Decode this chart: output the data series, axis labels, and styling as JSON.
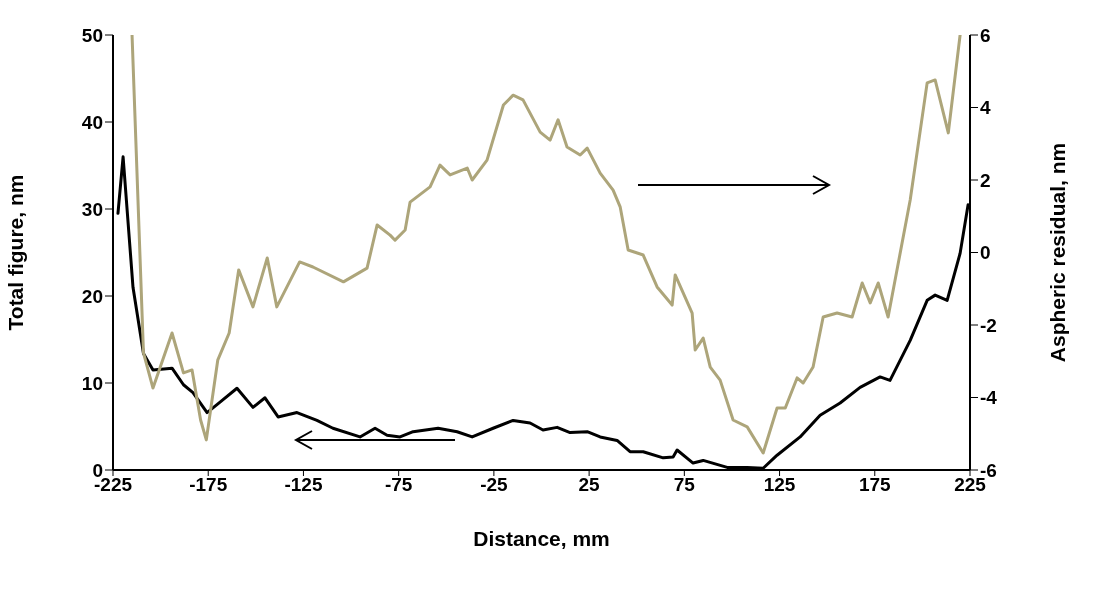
{
  "chart_data": {
    "type": "line",
    "xlabel": "Distance, mm",
    "ylabel": "Total figure, nm",
    "y2label": "Aspheric residual, nm",
    "xlim": [
      -225,
      225
    ],
    "xticks": [
      -225,
      -175,
      -125,
      -75,
      -25,
      25,
      75,
      125,
      175,
      225
    ],
    "ylim": [
      0,
      50
    ],
    "yticks": [
      0,
      10,
      20,
      30,
      40,
      50
    ],
    "y2lim": [
      -6,
      6
    ],
    "y2ticks": [
      -6,
      -4,
      -2,
      0,
      2,
      4,
      6
    ],
    "grid": false,
    "marker": "none",
    "line_style": "solid",
    "series": [
      {
        "color": "#000000",
        "x": [
          -222.4,
          -219.7,
          -214.5,
          -209,
          -204,
          -194,
          -188,
          -183,
          -175.6,
          -168.8,
          -159.9,
          -151.5,
          -145.2,
          -138.3,
          -128.4,
          -117.9,
          -109.5,
          -95.3,
          -87.4,
          -81.1,
          -74.3,
          -67.4,
          -54.3,
          -44.3,
          -36.4,
          -25.4,
          -14.9,
          -6,
          0.8,
          8.2,
          15,
          24,
          30.8,
          39.7,
          46.5,
          53.4,
          63.9,
          69.1,
          71.2,
          79.6,
          84.9,
          97.5,
          108,
          116.4,
          123.7,
          135.8,
          146.3,
          156.8,
          167.3,
          177.8,
          183,
          193.6,
          202.5,
          206.7,
          213,
          219.8,
          224
        ],
        "values": [
          29.5,
          36,
          21,
          13.4,
          11.5,
          11.7,
          9.8,
          8.9,
          6.6,
          7.8,
          9.4,
          7.2,
          8.3,
          6.1,
          6.6,
          5.7,
          4.8,
          3.8,
          4.8,
          4,
          3.8,
          4.4,
          4.8,
          4.4,
          3.8,
          4.8,
          5.7,
          5.4,
          4.6,
          4.9,
          4.3,
          4.4,
          3.8,
          3.4,
          2.1,
          2.1,
          1.4,
          1.5,
          2.3,
          0.8,
          1.1,
          0.3,
          0.3,
          0.2,
          1.7,
          3.8,
          6.3,
          7.7,
          9.5,
          10.7,
          10.3,
          14.9,
          19.5,
          20.1,
          19.5,
          24.9,
          30.5
        ]
      },
      {
        "color": "#ada57a",
        "axis": "y2",
        "x": [
          -215,
          -209,
          -204,
          -194,
          -188,
          -183.5,
          -179,
          -176,
          -170,
          -164,
          -159,
          -151.5,
          -144,
          -139,
          -127,
          -120,
          -104,
          -91.6,
          -86.3,
          -79.5,
          -76.9,
          -71.6,
          -69,
          -58.5,
          -53.3,
          -48,
          -39,
          -36.4,
          -28.6,
          -20,
          -14.9,
          -9.7,
          -0.7,
          4.5,
          8.7,
          13.4,
          20.3,
          24,
          30.8,
          37.6,
          41.3,
          45.5,
          53.4,
          60.7,
          68.6,
          70.2,
          79.1,
          80.7,
          84.9,
          88.6,
          93.8,
          100.6,
          108,
          116.4,
          123.7,
          128,
          134.2,
          137.4,
          142.6,
          147.9,
          155.2,
          163.1,
          168.4,
          172.6,
          176.8,
          182,
          193.6,
          202.5,
          206.7,
          213.6,
          219.8
        ],
        "values": [
          6,
          -2.77,
          -3.74,
          -2.22,
          -3.32,
          -3.24,
          -4.62,
          -5.17,
          -2.97,
          -2.22,
          -0.48,
          -1.5,
          -0.15,
          -1.5,
          -0.26,
          -0.4,
          -0.81,
          -0.43,
          0.76,
          0.48,
          0.34,
          0.62,
          1.39,
          1.81,
          2.41,
          2.14,
          2.33,
          2,
          2.55,
          4.07,
          4.34,
          4.21,
          3.32,
          3.1,
          3.66,
          2.91,
          2.69,
          2.88,
          2.19,
          1.72,
          1.26,
          0.07,
          -0.07,
          -0.95,
          -1.45,
          -0.62,
          -1.67,
          -2.69,
          -2.36,
          -3.16,
          -3.52,
          -4.62,
          -4.81,
          -5.53,
          -4.29,
          -4.29,
          -3.46,
          -3.6,
          -3.16,
          -1.78,
          -1.67,
          -1.78,
          -0.84,
          -1.39,
          -0.84,
          -1.78,
          1.45,
          4.68,
          4.76,
          3.3,
          6
        ]
      }
    ]
  }
}
